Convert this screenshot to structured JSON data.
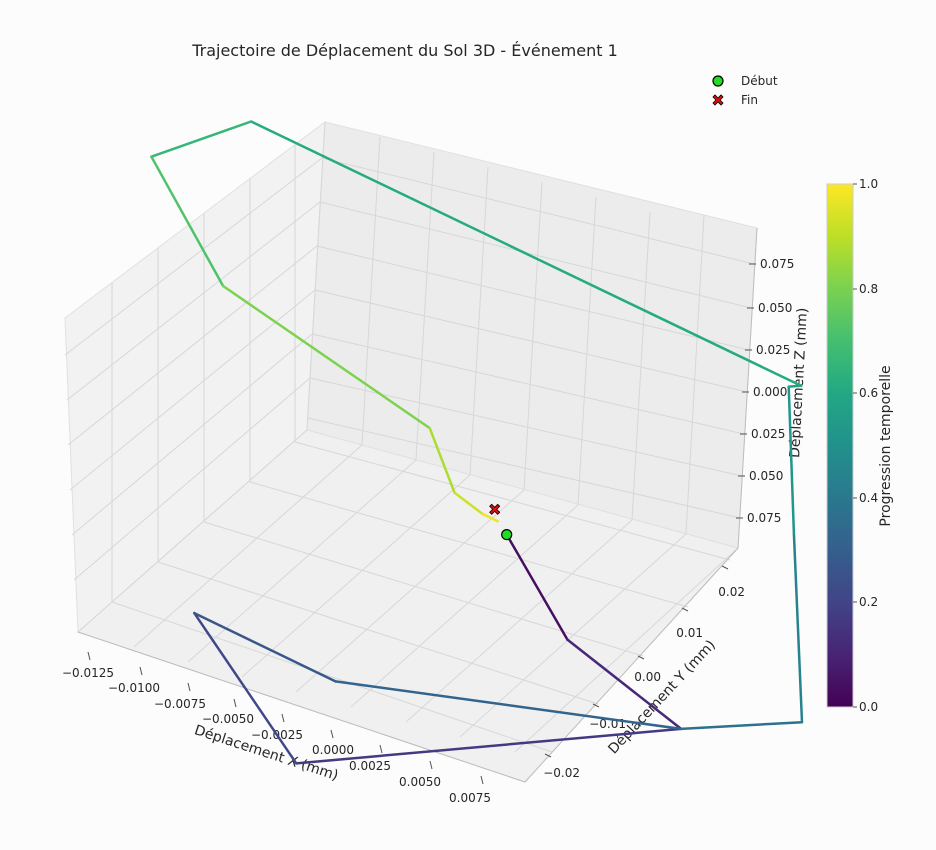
{
  "chart_data": {
    "type": "line",
    "title": "Trajectoire de Déplacement du Sol 3D - Événement 1",
    "xlabel": "Déplacement X (mm)",
    "ylabel": "Déplacement Y (mm)",
    "zlabel": "Déplacement Z (mm)",
    "x_ticks": [
      "−0.0125",
      "−0.0100",
      "−0.0075",
      "−0.0050",
      "−0.0025",
      "0.0000",
      "0.0025",
      "0.0050",
      "0.0075"
    ],
    "y_ticks": [
      "−0.02",
      "−0.01",
      "0.00",
      "0.01",
      "0.02"
    ],
    "z_ticks": [
      "0.075",
      "0.050",
      "0.025",
      "0.000",
      "0.025",
      "0.050",
      "0.075"
    ],
    "colorbar": {
      "label": "Progression temporelle",
      "ticks": [
        "0.0",
        "0.2",
        "0.4",
        "0.6",
        "0.8",
        "1.0"
      ],
      "colormap": "viridis",
      "range": [
        0,
        1
      ]
    },
    "legend": {
      "placement": "top-right",
      "start_label": "Début",
      "end_label": "Fin",
      "start_color": "#22dd22",
      "end_color": "#dd1111"
    },
    "grid": true,
    "trajectory": [
      {
        "x": 0.0015,
        "y": 0.0015,
        "z": -0.035,
        "t": 0.0
      },
      {
        "x": 0.004,
        "y": 0.002,
        "z": -0.09,
        "t": 0.08
      },
      {
        "x": 0.0075,
        "y": 0.01,
        "z": -0.15,
        "t": 0.14
      },
      {
        "x": -0.005,
        "y": -0.019,
        "z": -0.145,
        "t": 0.2
      },
      {
        "x": -0.0125,
        "y": -0.005,
        "z": -0.115,
        "t": 0.24
      },
      {
        "x": -0.005,
        "y": -0.009,
        "z": -0.12,
        "t": 0.3
      },
      {
        "x": 0.0075,
        "y": 0.01,
        "z": -0.15,
        "t": 0.34
      },
      {
        "x": 0.011,
        "y": 0.021,
        "z": -0.16,
        "t": 0.4
      },
      {
        "x": 0.011,
        "y": 0.022,
        "z": -0.05,
        "t": 0.48
      },
      {
        "x": 0.011,
        "y": 0.023,
        "z": 0.035,
        "t": 0.56
      },
      {
        "x": 0.0115,
        "y": 0.0235,
        "z": 0.036,
        "t": 0.58
      },
      {
        "x": -0.0125,
        "y": 0.015,
        "z": 0.13,
        "t": 0.64
      },
      {
        "x": -0.0155,
        "y": 0.006,
        "z": 0.12,
        "t": 0.68
      },
      {
        "x": -0.012,
        "y": 0.004,
        "z": 0.06,
        "t": 0.76
      },
      {
        "x": -0.002,
        "y": 0.002,
        "z": 0.015,
        "t": 0.85
      },
      {
        "x": -0.001,
        "y": 0.002,
        "z": -0.02,
        "t": 0.9
      },
      {
        "x": 0.0005,
        "y": 0.001,
        "z": -0.025,
        "t": 0.95
      },
      {
        "x": 0.001,
        "y": 0.002,
        "z": -0.03,
        "t": 1.0
      }
    ]
  }
}
